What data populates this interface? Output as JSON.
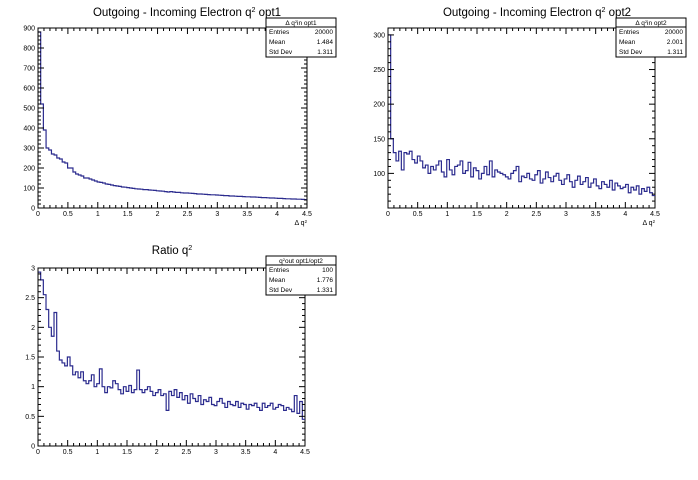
{
  "chart_data": [
    {
      "type": "histogram",
      "title": "Outgoing - Incoming Electron q",
      "title_sup": "2",
      "title_suffix": " opt1",
      "xlabel": "Δ q",
      "xlabel_sup": "2",
      "xlim": [
        0,
        4.5
      ],
      "ylim": [
        0,
        900
      ],
      "x_ticks": [
        "0",
        "0.5",
        "1",
        "1.5",
        "2",
        "2.5",
        "3",
        "3.5",
        "4",
        "4.5"
      ],
      "y_ticks": [
        "0",
        "100",
        "200",
        "300",
        "400",
        "500",
        "600",
        "700",
        "800",
        "900"
      ],
      "line_color": "#2b2b8e",
      "stats": {
        "name": "Δ q",
        "name_sup": "2",
        "name_suffix": "in opt1",
        "rows": [
          {
            "label": "Entries",
            "value": "20000"
          },
          {
            "label": "Mean",
            "value": "1.484"
          },
          {
            "label": "Std Dev",
            "value": "1.311"
          }
        ]
      },
      "bins": {
        "x_start": 0,
        "bin_width": 0.045,
        "values": [
          880,
          520,
          390,
          300,
          290,
          270,
          265,
          250,
          245,
          230,
          225,
          200,
          200,
          180,
          170,
          165,
          160,
          150,
          150,
          145,
          140,
          135,
          130,
          128,
          125,
          120,
          118,
          115,
          112,
          110,
          108,
          105,
          104,
          102,
          100,
          98,
          96,
          95,
          94,
          92,
          92,
          90,
          89,
          88,
          86,
          85,
          84,
          82,
          80,
          82,
          80,
          78,
          78,
          76,
          75,
          75,
          74,
          73,
          72,
          70,
          70,
          69,
          68,
          67,
          66,
          66,
          65,
          64,
          63,
          62,
          62,
          60,
          60,
          59,
          58,
          58,
          57,
          56,
          56,
          55,
          55,
          54,
          53,
          52,
          52,
          51,
          50,
          50,
          49,
          48,
          48,
          47,
          46,
          46,
          45,
          45,
          44,
          44,
          43,
          42
        ]
      }
    },
    {
      "type": "histogram",
      "title": "Outgoing - Incoming Electron q",
      "title_sup": "2",
      "title_suffix": " opt2",
      "xlabel": "Δ q",
      "xlabel_sup": "2",
      "xlim": [
        0,
        4.5
      ],
      "ylim": [
        50,
        310
      ],
      "x_ticks": [
        "0",
        "0.5",
        "1",
        "1.5",
        "2",
        "2.5",
        "3",
        "3.5",
        "4",
        "4.5"
      ],
      "y_ticks": [
        "100",
        "150",
        "200",
        "250",
        "300"
      ],
      "line_color": "#2b2b8e",
      "stats": {
        "name": "Δ q",
        "name_sup": "2",
        "name_suffix": "in opt2",
        "rows": [
          {
            "label": "Entries",
            "value": "20000"
          },
          {
            "label": "Mean",
            "value": "2.001"
          },
          {
            "label": "Std Dev",
            "value": "1.311"
          }
        ]
      },
      "bins": {
        "x_start": 0,
        "bin_width": 0.045,
        "values": [
          300,
          150,
          130,
          118,
          132,
          105,
          130,
          128,
          132,
          120,
          115,
          125,
          118,
          108,
          112,
          100,
          110,
          105,
          112,
          118,
          102,
          95,
          120,
          105,
          98,
          110,
          112,
          118,
          100,
          104,
          116,
          95,
          108,
          104,
          92,
          100,
          110,
          98,
          118,
          95,
          105,
          102,
          100,
          98,
          95,
          92,
          100,
          104,
          110,
          88,
          96,
          94,
          100,
          92,
          90,
          98,
          104,
          86,
          92,
          102,
          94,
          88,
          96,
          100,
          90,
          84,
          92,
          98,
          88,
          80,
          90,
          96,
          84,
          88,
          94,
          80,
          86,
          92,
          82,
          78,
          88,
          84,
          80,
          90,
          76,
          86,
          82,
          78,
          80,
          84,
          72,
          80,
          76,
          82,
          70,
          78,
          74,
          80,
          72,
          68
        ]
      }
    },
    {
      "type": "histogram",
      "title": "Ratio q",
      "title_sup": "2",
      "title_suffix": "",
      "xlabel": "",
      "xlabel_sup": "",
      "xlim": [
        0,
        4.5
      ],
      "ylim": [
        0,
        3
      ],
      "x_ticks": [
        "0",
        "0.5",
        "1",
        "1.5",
        "2",
        "2.5",
        "3",
        "3.5",
        "4",
        "4.5"
      ],
      "y_ticks": [
        "0",
        "0.5",
        "1",
        "1.5",
        "2",
        "2.5",
        "3"
      ],
      "line_color": "#2b2b8e",
      "stats": {
        "name": "q",
        "name_sup": "2",
        "name_suffix": "out opt1/opt2",
        "rows": [
          {
            "label": "Entries",
            "value": "100"
          },
          {
            "label": "Mean",
            "value": "1.776"
          },
          {
            "label": "Std Dev",
            "value": "1.331"
          }
        ]
      },
      "bins": {
        "x_start": 0,
        "bin_width": 0.045,
        "values": [
          2.93,
          2.8,
          2.55,
          2.3,
          2.0,
          1.85,
          2.25,
          1.6,
          1.45,
          1.4,
          1.35,
          1.5,
          1.35,
          1.2,
          1.25,
          1.15,
          1.25,
          1.1,
          1.05,
          1.1,
          1.2,
          1.0,
          1.05,
          1.3,
          1.0,
          0.9,
          1.0,
          0.98,
          1.1,
          1.05,
          0.95,
          0.88,
          1.0,
          0.92,
          1.02,
          0.9,
          0.95,
          1.28,
          0.95,
          0.9,
          0.95,
          1.0,
          0.92,
          0.85,
          0.9,
          0.95,
          0.85,
          0.88,
          0.6,
          0.92,
          0.85,
          0.95,
          0.82,
          0.9,
          0.78,
          0.85,
          0.72,
          0.88,
          0.8,
          0.75,
          0.85,
          0.7,
          0.78,
          0.75,
          0.82,
          0.7,
          0.68,
          0.75,
          0.8,
          0.72,
          0.65,
          0.75,
          0.7,
          0.68,
          0.75,
          0.65,
          0.72,
          0.7,
          0.62,
          0.7,
          0.68,
          0.72,
          0.65,
          0.6,
          0.72,
          0.65,
          0.68,
          0.72,
          0.62,
          0.65,
          0.7,
          0.68,
          0.6,
          0.65,
          0.62,
          0.58,
          0.85,
          0.55,
          0.75,
          0.45
        ]
      }
    }
  ]
}
